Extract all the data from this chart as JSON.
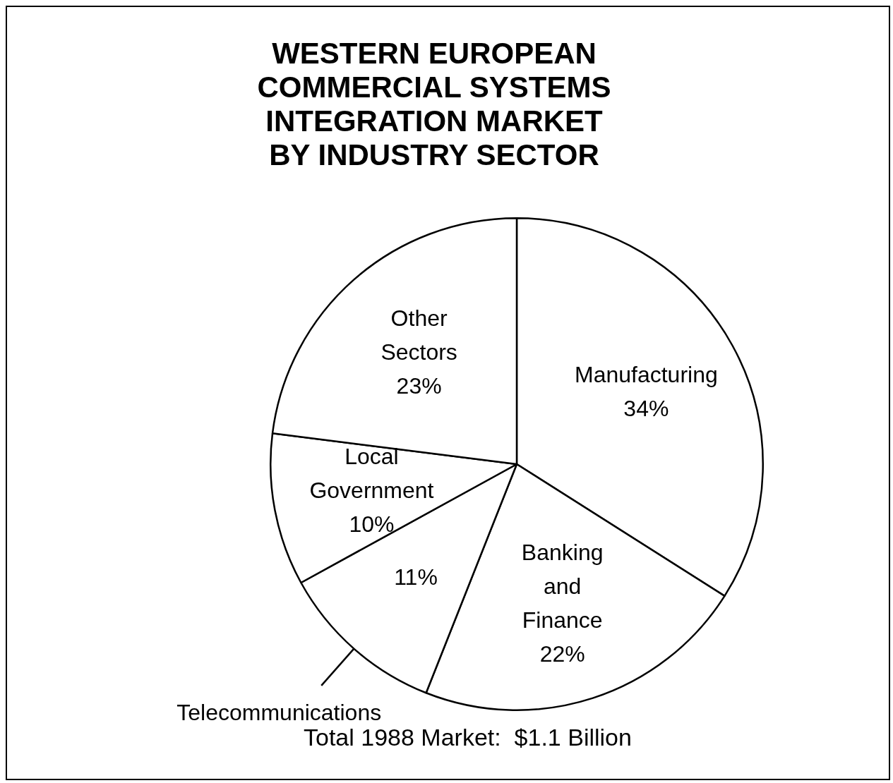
{
  "chart_data": {
    "type": "pie",
    "title": "WESTERN EUROPEAN\nCOMMERCIAL SYSTEMS\nINTEGRATION MARKET\nBY INDUSTRY SECTOR",
    "categories": [
      "Manufacturing",
      "Banking and Finance",
      "Telecommunications",
      "Local Government",
      "Other Sectors"
    ],
    "values": [
      34,
      22,
      11,
      10,
      23
    ],
    "value_labels": [
      "34%",
      "22%",
      "11%",
      "10%",
      "23%"
    ],
    "colors": [
      "#ffffff",
      "#ffffff",
      "#ffffff",
      "#ffffff",
      "#ffffff"
    ],
    "legend": false,
    "annotations": [
      "Total 1988 Market:  $1.1 Billion"
    ]
  }
}
